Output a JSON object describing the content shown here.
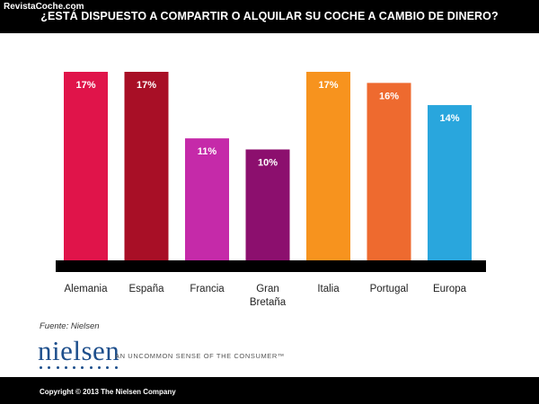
{
  "header": {
    "watermark": "RevistaCoche.com",
    "title": "¿ESTÁ DISPUESTO A COMPARTIR O ALQUILAR SU COCHE A CAMBIO DE DINERO?"
  },
  "source": "Fuente: Nielsen",
  "brand": {
    "logo_text": "nielsen",
    "tagline": "AN UNCOMMON SENSE OF THE CONSUMER™"
  },
  "footer": {
    "copyright": "Copyright © 2013 The Nielsen Company"
  },
  "chart_data": {
    "type": "bar",
    "title": "¿ESTÁ DISPUESTO A COMPARTIR O ALQUILAR SU COCHE A CAMBIO DE DINERO?",
    "categories": [
      "Alemania",
      "España",
      "Francia",
      "Gran Bretaña",
      "Italia",
      "Portugal",
      "Europa"
    ],
    "category_lines": [
      [
        "Alemania"
      ],
      [
        "España"
      ],
      [
        "Francia"
      ],
      [
        "Gran",
        "Bretaña"
      ],
      [
        "Italia"
      ],
      [
        "Portugal"
      ],
      [
        "Europa"
      ]
    ],
    "values": [
      17,
      17,
      11,
      10,
      17,
      16,
      14
    ],
    "value_labels": [
      "17%",
      "17%",
      "11%",
      "10%",
      "17%",
      "16%",
      "14%"
    ],
    "colors": [
      "#e0144a",
      "#a80f26",
      "#c52aa9",
      "#8c0f6e",
      "#f7931e",
      "#ee6a2f",
      "#29a6dd"
    ],
    "ylim": [
      0,
      17
    ],
    "grid": false,
    "legend": "none",
    "xlabel": "",
    "ylabel": ""
  }
}
